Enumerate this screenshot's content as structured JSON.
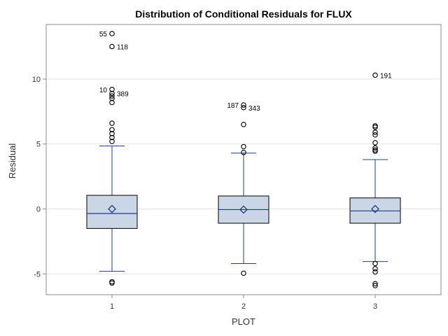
{
  "chart_data": {
    "type": "box",
    "title": "Distribution of Conditional Residuals for FLUX",
    "xlabel": "PLOT",
    "ylabel": "Residual",
    "categories": [
      "1",
      "2",
      "3"
    ],
    "ylim": [
      -6.6,
      14.2
    ],
    "yticks": [
      -5,
      0,
      5,
      10
    ],
    "grid": "horizontal",
    "boxes": [
      {
        "category": "1",
        "q1": -1.5,
        "median": -0.35,
        "q3": 1.05,
        "whisker_low": -4.8,
        "whisker_high": 4.85,
        "mean": 0.0,
        "outliers": [
          13.5,
          12.5,
          9.2,
          8.9,
          8.7,
          8.5,
          8.2,
          6.6,
          6.1,
          5.8,
          5.5,
          5.2,
          -5.6,
          -5.7
        ],
        "outlier_labels": [
          {
            "value": 13.5,
            "label": "55",
            "side": "left"
          },
          {
            "value": 12.5,
            "label": "118",
            "side": "right"
          },
          {
            "value": 9.2,
            "label": "10",
            "side": "left"
          },
          {
            "value": 8.9,
            "label": "389",
            "side": "right"
          }
        ]
      },
      {
        "category": "2",
        "q1": -1.1,
        "median": -0.05,
        "q3": 1.0,
        "whisker_low": -4.2,
        "whisker_high": 4.3,
        "mean": -0.05,
        "outliers": [
          8.0,
          7.8,
          6.5,
          4.8,
          4.35,
          -4.95
        ],
        "outlier_labels": [
          {
            "value": 8.0,
            "label": "187",
            "side": "left"
          },
          {
            "value": 7.8,
            "label": "343",
            "side": "right"
          }
        ]
      },
      {
        "category": "3",
        "q1": -1.1,
        "median": -0.15,
        "q3": 0.85,
        "whisker_low": -4.05,
        "whisker_high": 3.8,
        "mean": 0.0,
        "outliers": [
          10.3,
          6.4,
          6.3,
          5.9,
          5.7,
          5.1,
          4.7,
          4.55,
          4.45,
          -4.2,
          -4.6,
          -4.85,
          -5.75,
          -5.9
        ],
        "outlier_labels": [
          {
            "value": 10.3,
            "label": "191",
            "side": "right"
          }
        ]
      }
    ],
    "colors": {
      "box_fill": "#cad5e5",
      "box_stroke": "#000000",
      "median": "#1f3c8c",
      "whisker": "#1f3c8c",
      "mean_marker": "#1f3c8c",
      "outlier": "#000000",
      "grid": "#e3e3e3",
      "frame": "#8c8c8c"
    }
  }
}
